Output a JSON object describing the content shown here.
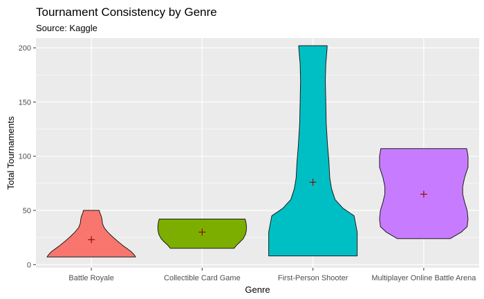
{
  "chart_data": {
    "type": "violin",
    "title": "Tournament Consistency by Genre",
    "subtitle": "Source: Kaggle",
    "xlabel": "Genre",
    "ylabel": "Total Tournaments",
    "ylim": [
      -3,
      209
    ],
    "yticks": [
      0,
      50,
      100,
      150,
      200
    ],
    "grid": true,
    "background": "#ebebeb",
    "gridColor": "#ffffff",
    "meanMarker": {
      "shape": "plus",
      "color": "#8b0000"
    },
    "categories": [
      "Battle Royale",
      "Collectible Card Game",
      "First-Person Shooter",
      "Multiplayer Online Battle Arena"
    ],
    "series": [
      {
        "category": "Battle Royale",
        "color": "#f8766d",
        "min": 7,
        "max": 50,
        "mean": 23,
        "profile": [
          [
            7,
            1.0
          ],
          [
            9,
            0.97
          ],
          [
            12,
            0.9
          ],
          [
            15,
            0.8
          ],
          [
            18,
            0.7
          ],
          [
            22,
            0.58
          ],
          [
            26,
            0.47
          ],
          [
            30,
            0.37
          ],
          [
            34,
            0.29
          ],
          [
            38,
            0.25
          ],
          [
            42,
            0.24
          ],
          [
            45,
            0.22
          ],
          [
            48,
            0.19
          ],
          [
            50,
            0.18
          ]
        ]
      },
      {
        "category": "Collectible Card Game",
        "color": "#7cae00",
        "min": 15,
        "max": 42,
        "mean": 30,
        "profile": [
          [
            15,
            0.72
          ],
          [
            18,
            0.78
          ],
          [
            21,
            0.86
          ],
          [
            24,
            0.93
          ],
          [
            28,
            0.98
          ],
          [
            32,
            1.0
          ],
          [
            36,
            1.0
          ],
          [
            39,
            0.99
          ],
          [
            42,
            0.97
          ]
        ]
      },
      {
        "category": "First-Person Shooter",
        "color": "#00bfc4",
        "min": 8,
        "max": 202,
        "mean": 76,
        "profile": [
          [
            8,
            1.0
          ],
          [
            30,
            1.0
          ],
          [
            45,
            0.93
          ],
          [
            52,
            0.68
          ],
          [
            60,
            0.5
          ],
          [
            70,
            0.42
          ],
          [
            80,
            0.38
          ],
          [
            95,
            0.36
          ],
          [
            110,
            0.33
          ],
          [
            130,
            0.3
          ],
          [
            150,
            0.29
          ],
          [
            170,
            0.28
          ],
          [
            185,
            0.29
          ],
          [
            200,
            0.32
          ],
          [
            202,
            0.32
          ]
        ]
      },
      {
        "category": "Multiplayer Online Battle Arena",
        "color": "#c77cff",
        "min": 24,
        "max": 107,
        "mean": 65,
        "profile": [
          [
            24,
            0.6
          ],
          [
            30,
            0.85
          ],
          [
            35,
            0.98
          ],
          [
            42,
            1.0
          ],
          [
            50,
            0.98
          ],
          [
            58,
            0.92
          ],
          [
            65,
            0.88
          ],
          [
            72,
            0.88
          ],
          [
            80,
            0.92
          ],
          [
            90,
            1.0
          ],
          [
            100,
            1.0
          ],
          [
            107,
            0.97
          ]
        ]
      }
    ]
  }
}
